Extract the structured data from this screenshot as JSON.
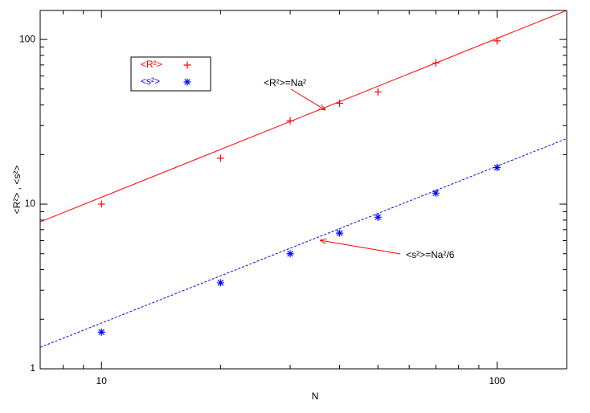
{
  "chart_data": {
    "type": "scatter",
    "xlabel": "N",
    "ylabel": "<R²>  ,  <s²>",
    "log_x": true,
    "log_y": true,
    "grid": false,
    "legend": "upper left",
    "xlim": [
      7,
      150
    ],
    "ylim": [
      1,
      150
    ],
    "xticks": [
      10,
      100
    ],
    "yticks": [
      1,
      10,
      100
    ],
    "xminorticks": [
      7,
      8,
      9,
      20,
      30,
      40,
      50,
      60,
      70,
      80,
      90
    ],
    "yminorticks": [
      2,
      3,
      4,
      5,
      6,
      7,
      8,
      9,
      20,
      30,
      40,
      50,
      60,
      70,
      80,
      90
    ],
    "series": [
      {
        "name": "<R²>",
        "color": "#ff0000",
        "marker": "plus",
        "x": [
          10,
          20,
          30,
          40,
          50,
          70,
          100
        ],
        "values": [
          10,
          19,
          32,
          41,
          48,
          72,
          98
        ]
      },
      {
        "name": "<s²>",
        "color": "#0000ff",
        "marker": "star",
        "x": [
          10,
          20,
          30,
          40,
          50,
          70,
          100
        ],
        "values": [
          1.67,
          3.33,
          5,
          6.67,
          8.33,
          11.67,
          16.67
        ]
      }
    ],
    "lines": [
      {
        "color": "#ff0000",
        "dash": false,
        "x": [
          7,
          150
        ],
        "values": [
          7.8,
          150
        ]
      },
      {
        "color": "#0000ff",
        "dash": true,
        "x": [
          7,
          150
        ],
        "values": [
          1.35,
          25
        ]
      }
    ],
    "annotations": [
      {
        "text": "<R²>=Na²",
        "color": "#ff0000"
      },
      {
        "text": "<s²>=Na²/6",
        "color": "#ff0000"
      }
    ]
  }
}
